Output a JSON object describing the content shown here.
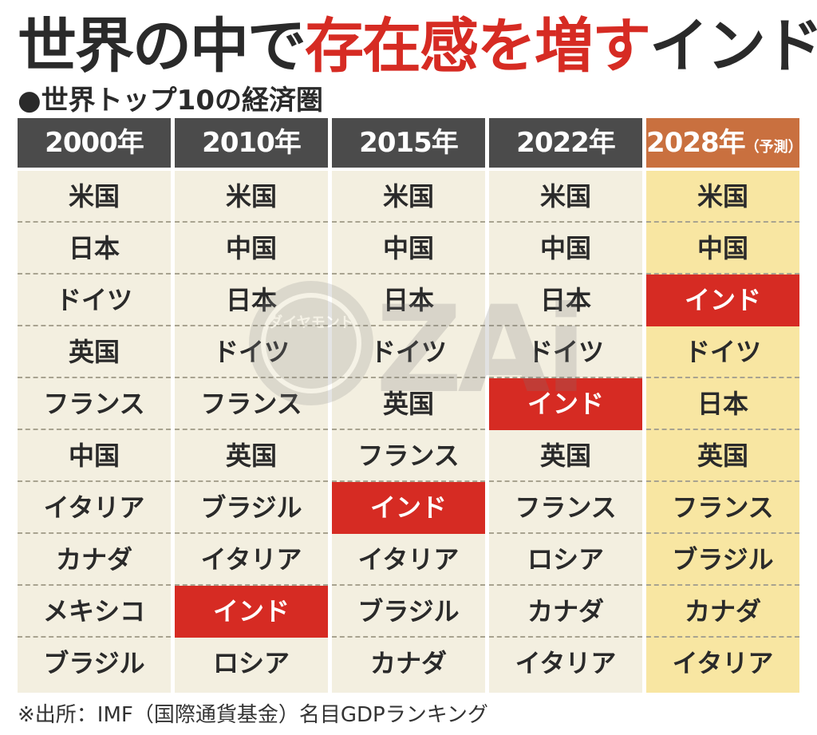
{
  "title": {
    "part1": "世界の中で",
    "part2": "存在感を増す",
    "part3": "インド"
  },
  "subtitle": "●世界トップ10の経済圏",
  "footnote": "※出所：IMF（国際通貨基金）名目GDPランキング",
  "watermark": {
    "small_text": "ダイヤモンド",
    "large_text": "ZAi"
  },
  "colors": {
    "header_dark": "#4b4b4b",
    "header_forecast": "#c9703f",
    "cell_bg": "#f3efe0",
    "cell_bg_forecast": "#f8e6a2",
    "highlight_india": "#d62b23",
    "title_accent": "#d62b23"
  },
  "chart_data": {
    "type": "table",
    "highlight": "インド",
    "columns": [
      {
        "year": "2000年",
        "note": "",
        "forecast": false,
        "rankings": [
          "米国",
          "日本",
          "ドイツ",
          "英国",
          "フランス",
          "中国",
          "イタリア",
          "カナダ",
          "メキシコ",
          "ブラジル"
        ]
      },
      {
        "year": "2010年",
        "note": "",
        "forecast": false,
        "rankings": [
          "米国",
          "中国",
          "日本",
          "ドイツ",
          "フランス",
          "英国",
          "ブラジル",
          "イタリア",
          "インド",
          "ロシア"
        ]
      },
      {
        "year": "2015年",
        "note": "",
        "forecast": false,
        "rankings": [
          "米国",
          "中国",
          "日本",
          "ドイツ",
          "英国",
          "フランス",
          "インド",
          "イタリア",
          "ブラジル",
          "カナダ"
        ]
      },
      {
        "year": "2022年",
        "note": "",
        "forecast": false,
        "rankings": [
          "米国",
          "中国",
          "日本",
          "ドイツ",
          "インド",
          "英国",
          "フランス",
          "ロシア",
          "カナダ",
          "イタリア"
        ]
      },
      {
        "year": "2028年",
        "note": "（予測）",
        "forecast": true,
        "rankings": [
          "米国",
          "中国",
          "インド",
          "ドイツ",
          "日本",
          "英国",
          "フランス",
          "ブラジル",
          "カナダ",
          "イタリア"
        ]
      }
    ]
  }
}
